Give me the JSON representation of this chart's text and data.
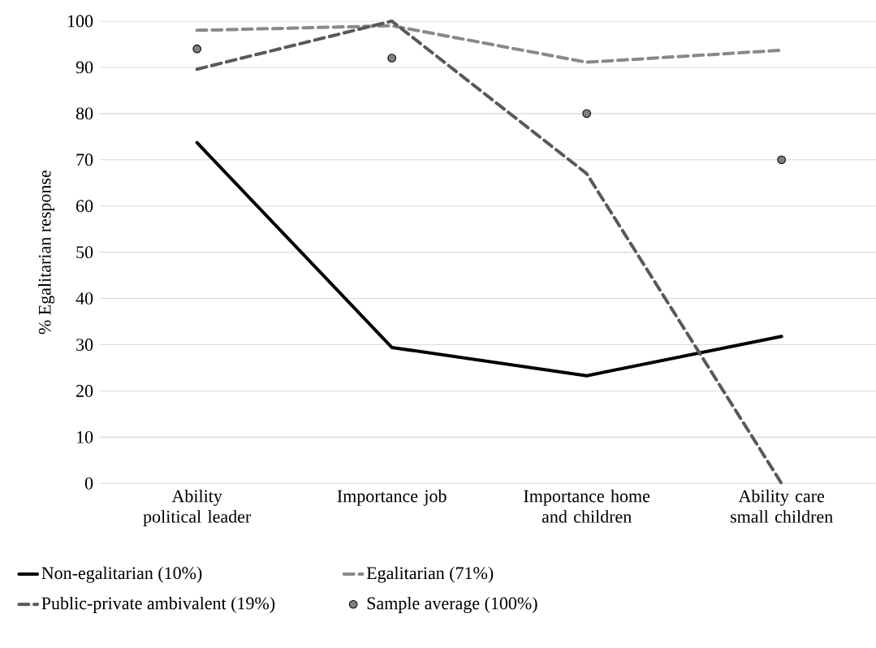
{
  "chart_data": {
    "type": "line",
    "ylabel": "% Egalitarian response",
    "categories": [
      "Ability political leader",
      "Importance job",
      "Importance home and children",
      "Ability care small children"
    ],
    "series": [
      {
        "name": "Non-egalitarian (10%)",
        "color": "#000000",
        "line_style": "solid",
        "values": [
          73.7,
          29.4,
          23.3,
          31.8
        ]
      },
      {
        "name": "Egalitarian (71%)",
        "color": "#898989",
        "line_style": "dashed",
        "values": [
          98,
          99,
          91.1,
          93.7
        ]
      },
      {
        "name": "Public-private ambivalent (19%)",
        "color": "#595959",
        "line_style": "dashed",
        "values": [
          89.6,
          100,
          67,
          0
        ]
      },
      {
        "name": "Sample average (100%)",
        "type": "scatter",
        "color": "#808080",
        "values": [
          94,
          92,
          80,
          70
        ]
      }
    ],
    "ylim": [
      0,
      100
    ],
    "yticks": [
      0,
      10,
      20,
      30,
      40,
      50,
      60,
      70,
      80,
      90,
      100
    ],
    "grid": "y",
    "legend": "bottom"
  }
}
